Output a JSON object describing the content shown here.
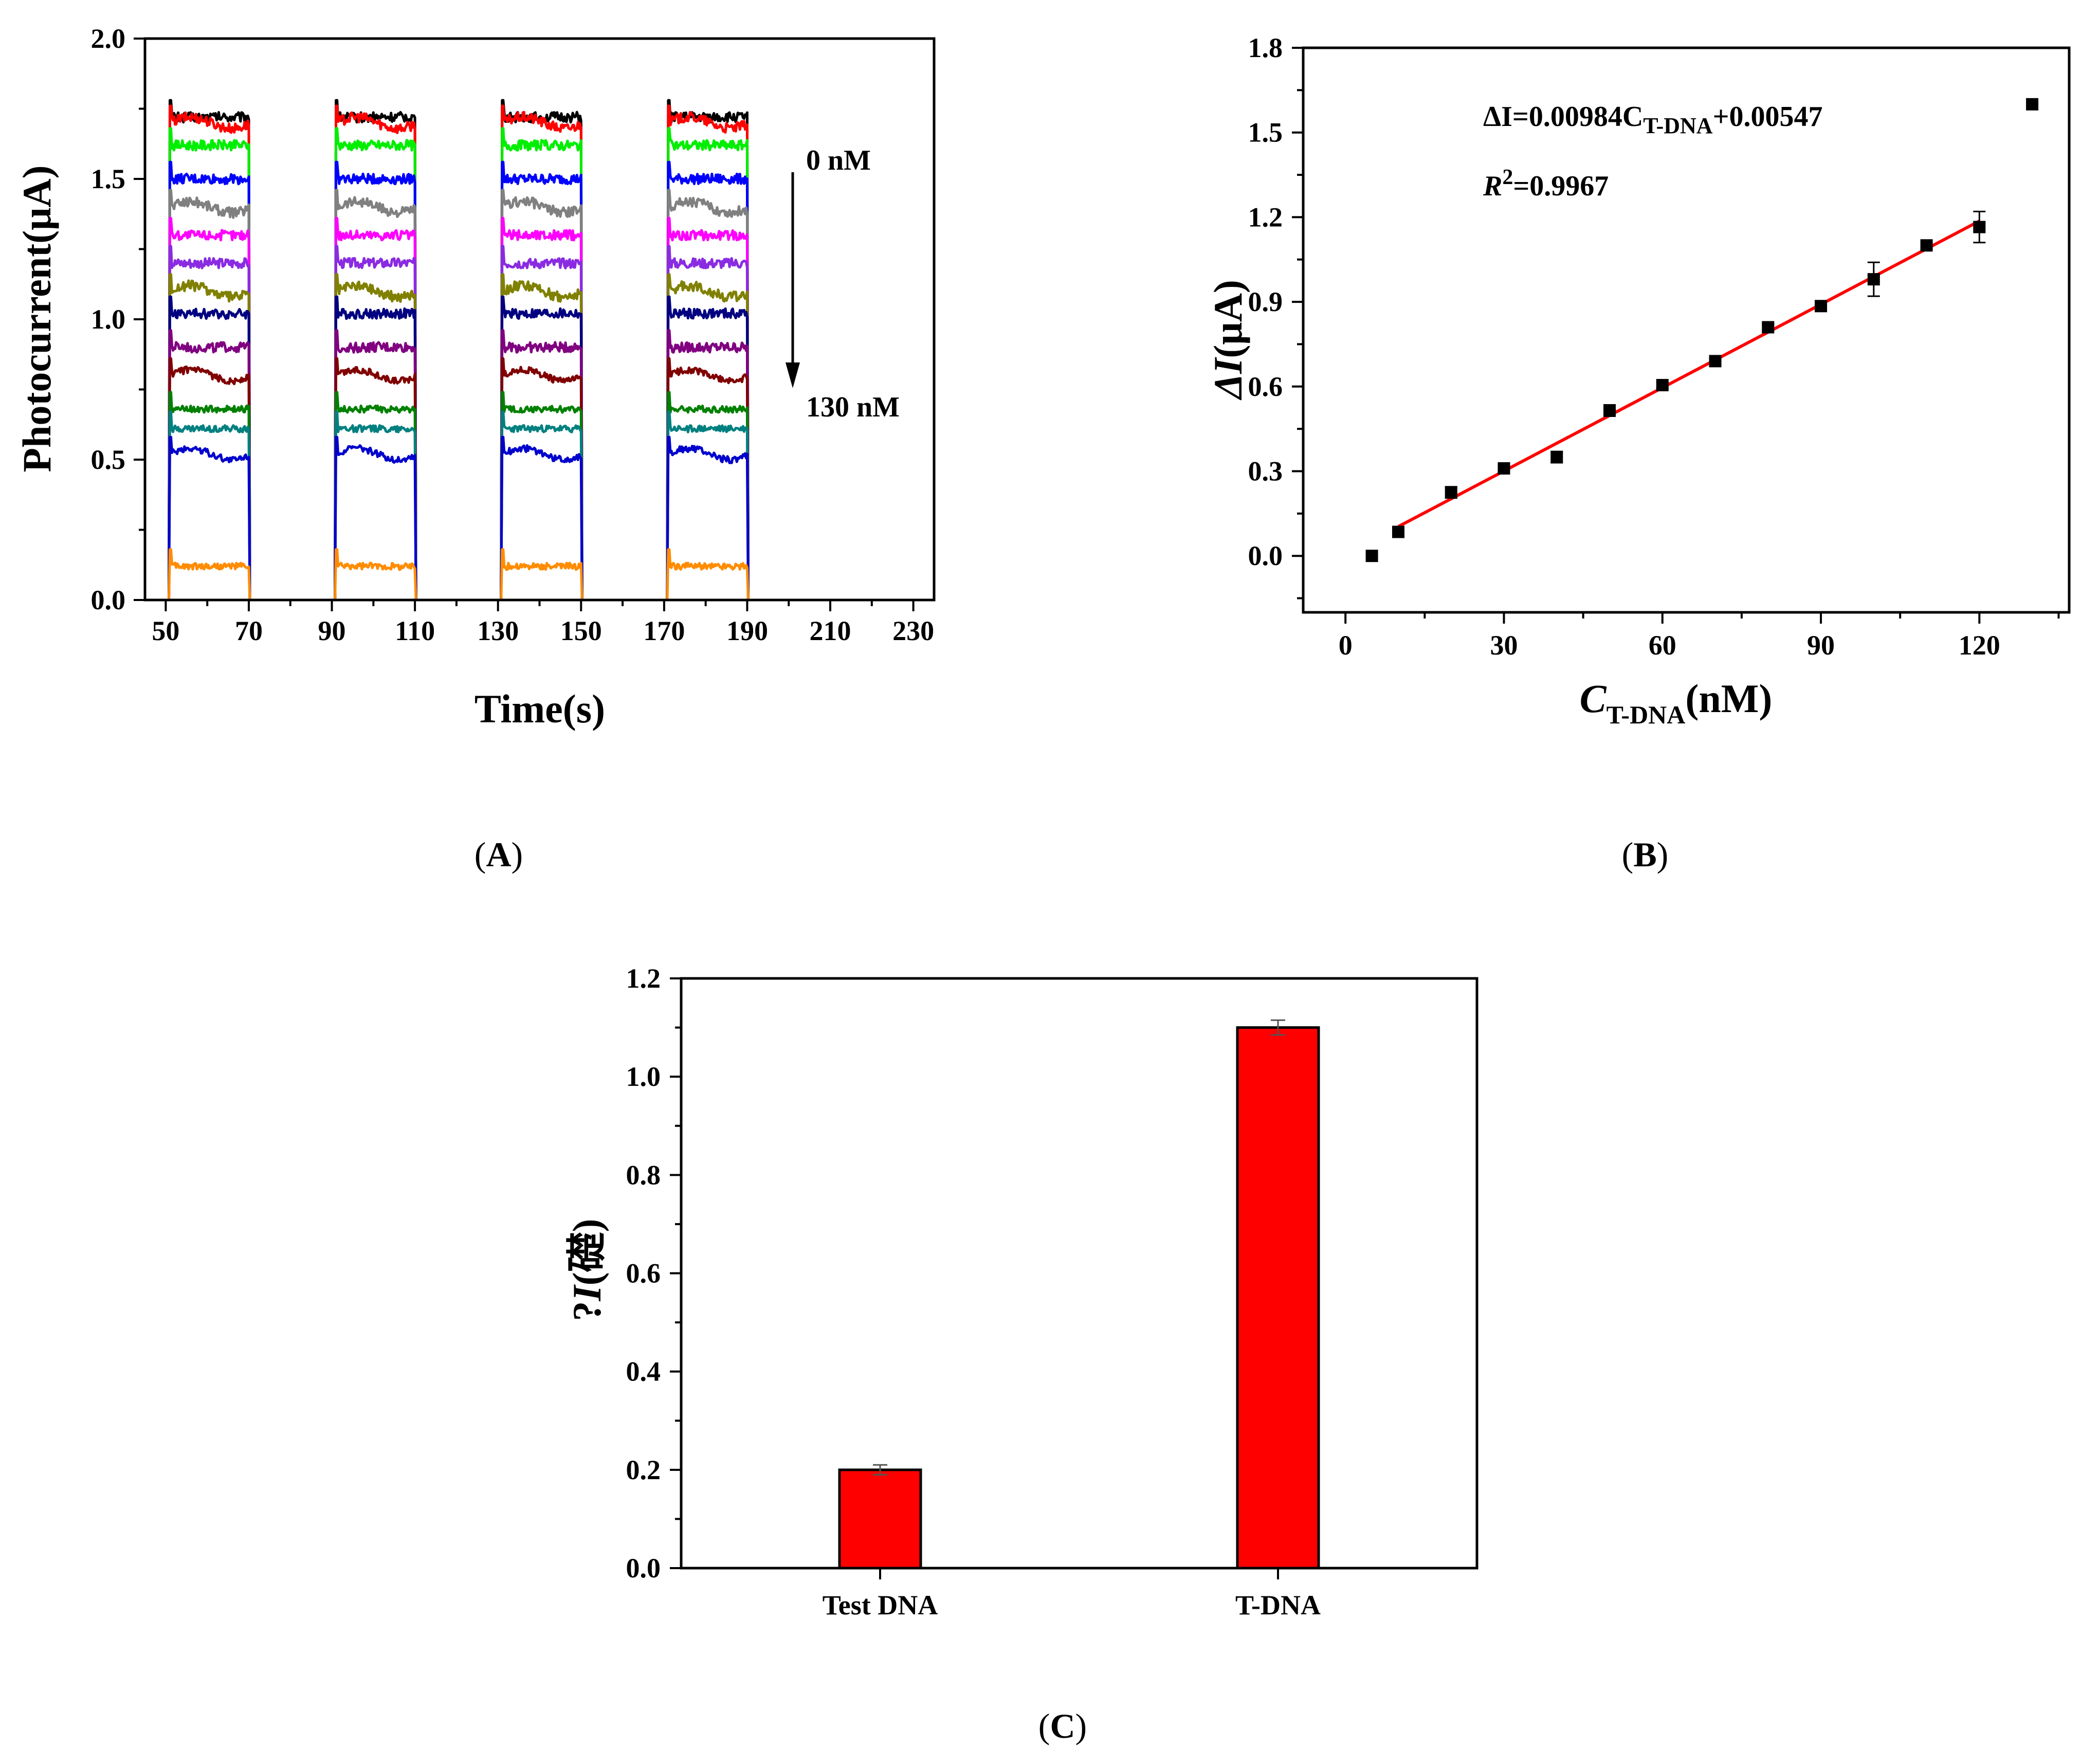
{
  "chart_data": [
    {
      "panel_label_pre": "(",
      "panel_label": "A",
      "panel_label_post": ")",
      "type": "line",
      "xlabel": "Time(s)",
      "ylabel": "Photocurrent(μA)",
      "xlim": [
        45,
        235
      ],
      "ylim": [
        0.0,
        2.0
      ],
      "xticks": [
        50,
        70,
        90,
        110,
        130,
        150,
        170,
        190,
        210,
        230
      ],
      "yticks": [
        "0.0",
        "0.5",
        "1.0",
        "1.5",
        "2.0"
      ],
      "light_on_intervals": [
        [
          51,
          70
        ],
        [
          91,
          110
        ],
        [
          131,
          150
        ],
        [
          171,
          190
        ]
      ],
      "time_range": [
        48,
        201
      ],
      "arrow_annotation": {
        "top": "0 nM",
        "bottom": "130 nM"
      },
      "series": [
        {
          "color": "#000000",
          "on_level": 1.72
        },
        {
          "color": "#ff0000",
          "on_level": 1.7
        },
        {
          "color": "#00ee00",
          "on_level": 1.62
        },
        {
          "color": "#0000ff",
          "on_level": 1.5
        },
        {
          "color": "#808080",
          "on_level": 1.4
        },
        {
          "color": "#ff00ff",
          "on_level": 1.3
        },
        {
          "color": "#8a2be2",
          "on_level": 1.2
        },
        {
          "color": "#808000",
          "on_level": 1.1
        },
        {
          "color": "#000080",
          "on_level": 1.02
        },
        {
          "color": "#800080",
          "on_level": 0.9
        },
        {
          "color": "#800000",
          "on_level": 0.8
        },
        {
          "color": "#008000",
          "on_level": 0.68
        },
        {
          "color": "#008080",
          "on_level": 0.61
        },
        {
          "color": "#0000cd",
          "on_level": 0.52
        },
        {
          "color": "#ff8c00",
          "on_level": 0.12
        }
      ]
    },
    {
      "panel_label_pre": "(",
      "panel_label": "B",
      "panel_label_post": ")",
      "type": "scatter",
      "xlabel_main": "C",
      "xlabel_sub": "T-DNA",
      "xlabel_tail": "(nM)",
      "ylabel_main": "ΔI",
      "ylabel_tail": "(μA)",
      "xlim": [
        -8,
        137
      ],
      "ylim": [
        -0.2,
        1.8
      ],
      "xticks": [
        "0",
        "30",
        "60",
        "90",
        "120"
      ],
      "yticks": [
        "0.0",
        "0.3",
        "0.6",
        "0.9",
        "1.2",
        "1.5",
        "1.8"
      ],
      "equation_parts": [
        "ΔI=0.00984C",
        "T-DNA",
        "+0.00547"
      ],
      "r2_parts": [
        "R",
        "2",
        "=0.9967"
      ],
      "points": [
        {
          "x": 5,
          "y": 0.0,
          "err": 0.0
        },
        {
          "x": 10,
          "y": 0.085,
          "err": 0.0
        },
        {
          "x": 20,
          "y": 0.225,
          "err": 0.02
        },
        {
          "x": 30,
          "y": 0.31,
          "err": 0.01
        },
        {
          "x": 40,
          "y": 0.35,
          "err": 0.02
        },
        {
          "x": 50,
          "y": 0.515,
          "err": 0.02
        },
        {
          "x": 60,
          "y": 0.605,
          "err": 0.01
        },
        {
          "x": 70,
          "y": 0.69,
          "err": 0.01
        },
        {
          "x": 80,
          "y": 0.81,
          "err": 0.01
        },
        {
          "x": 90,
          "y": 0.885,
          "err": 0.015
        },
        {
          "x": 100,
          "y": 0.98,
          "err": 0.06
        },
        {
          "x": 110,
          "y": 1.1,
          "err": 0.01
        },
        {
          "x": 120,
          "y": 1.165,
          "err": 0.055
        },
        {
          "x": 130,
          "y": 1.6,
          "err": 0.0
        }
      ],
      "fit": {
        "slope": 0.00984,
        "intercept": 0.00547,
        "x_range": [
          10,
          120
        ],
        "color": "#ff0000"
      }
    },
    {
      "panel_label_pre": "(",
      "panel_label": "C",
      "panel_label_post": ")",
      "type": "bar",
      "ylabel_parts": [
        "?",
        "I",
        "(",
        "礎",
        ")"
      ],
      "categories": [
        "Test DNA",
        "T-DNA"
      ],
      "values": [
        0.2,
        1.1
      ],
      "errors": [
        0.01,
        0.015
      ],
      "bar_color": "#ff0000",
      "ylim": [
        0.0,
        1.2
      ],
      "yticks": [
        "0.0",
        "0.2",
        "0.4",
        "0.6",
        "0.8",
        "1.0",
        "1.2"
      ]
    }
  ]
}
